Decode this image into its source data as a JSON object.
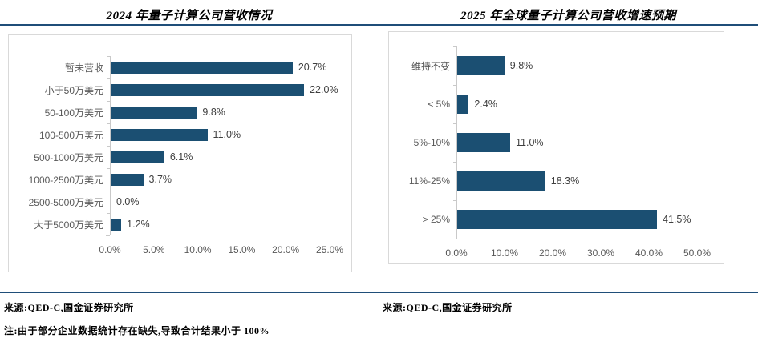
{
  "colors": {
    "bar": "#1b4f72",
    "rule": "#1f4e79",
    "box_border": "#d9d9d9",
    "axis_line": "#c9c9c9",
    "category_text": "#595959",
    "value_text": "#404040"
  },
  "note": "注:由于部分企业数据统计存在缺失,导致合计结果小于 100%",
  "chart_data": [
    {
      "type": "bar",
      "orientation": "horizontal",
      "title": "2024 年量子计算公司营收情况",
      "categories": [
        "暂未营收",
        "小于50万美元",
        "50-100万美元",
        "100-500万美元",
        "500-1000万美元",
        "1000-2500万美元",
        "2500-5000万美元",
        "大于5000万美元"
      ],
      "values": [
        20.7,
        22.0,
        9.8,
        11.0,
        6.1,
        3.7,
        0.0,
        1.2
      ],
      "value_labels": [
        "20.7%",
        "22.0%",
        "9.8%",
        "11.0%",
        "6.1%",
        "3.7%",
        "0.0%",
        "1.2%"
      ],
      "x_ticks": [
        "0.0%",
        "5.0%",
        "10.0%",
        "15.0%",
        "20.0%",
        "25.0%"
      ],
      "xlim": [
        0,
        25
      ],
      "xlabel": "",
      "ylabel": "",
      "grid": false,
      "legend": false,
      "source": "来源:QED-C,国金证券研究所"
    },
    {
      "type": "bar",
      "orientation": "horizontal",
      "title": "2025 年全球量子计算公司营收增速预期",
      "categories": [
        "维持不变",
        "< 5%",
        "5%-10%",
        "11%-25%",
        "> 25%"
      ],
      "values": [
        9.8,
        2.4,
        11.0,
        18.3,
        41.5
      ],
      "value_labels": [
        "9.8%",
        "2.4%",
        "11.0%",
        "18.3%",
        "41.5%"
      ],
      "x_ticks": [
        "0.0%",
        "10.0%",
        "20.0%",
        "30.0%",
        "40.0%",
        "50.0%"
      ],
      "xlim": [
        0,
        50
      ],
      "xlabel": "",
      "ylabel": "",
      "grid": false,
      "legend": false,
      "source": "来源:QED-C,国金证券研究所"
    }
  ]
}
